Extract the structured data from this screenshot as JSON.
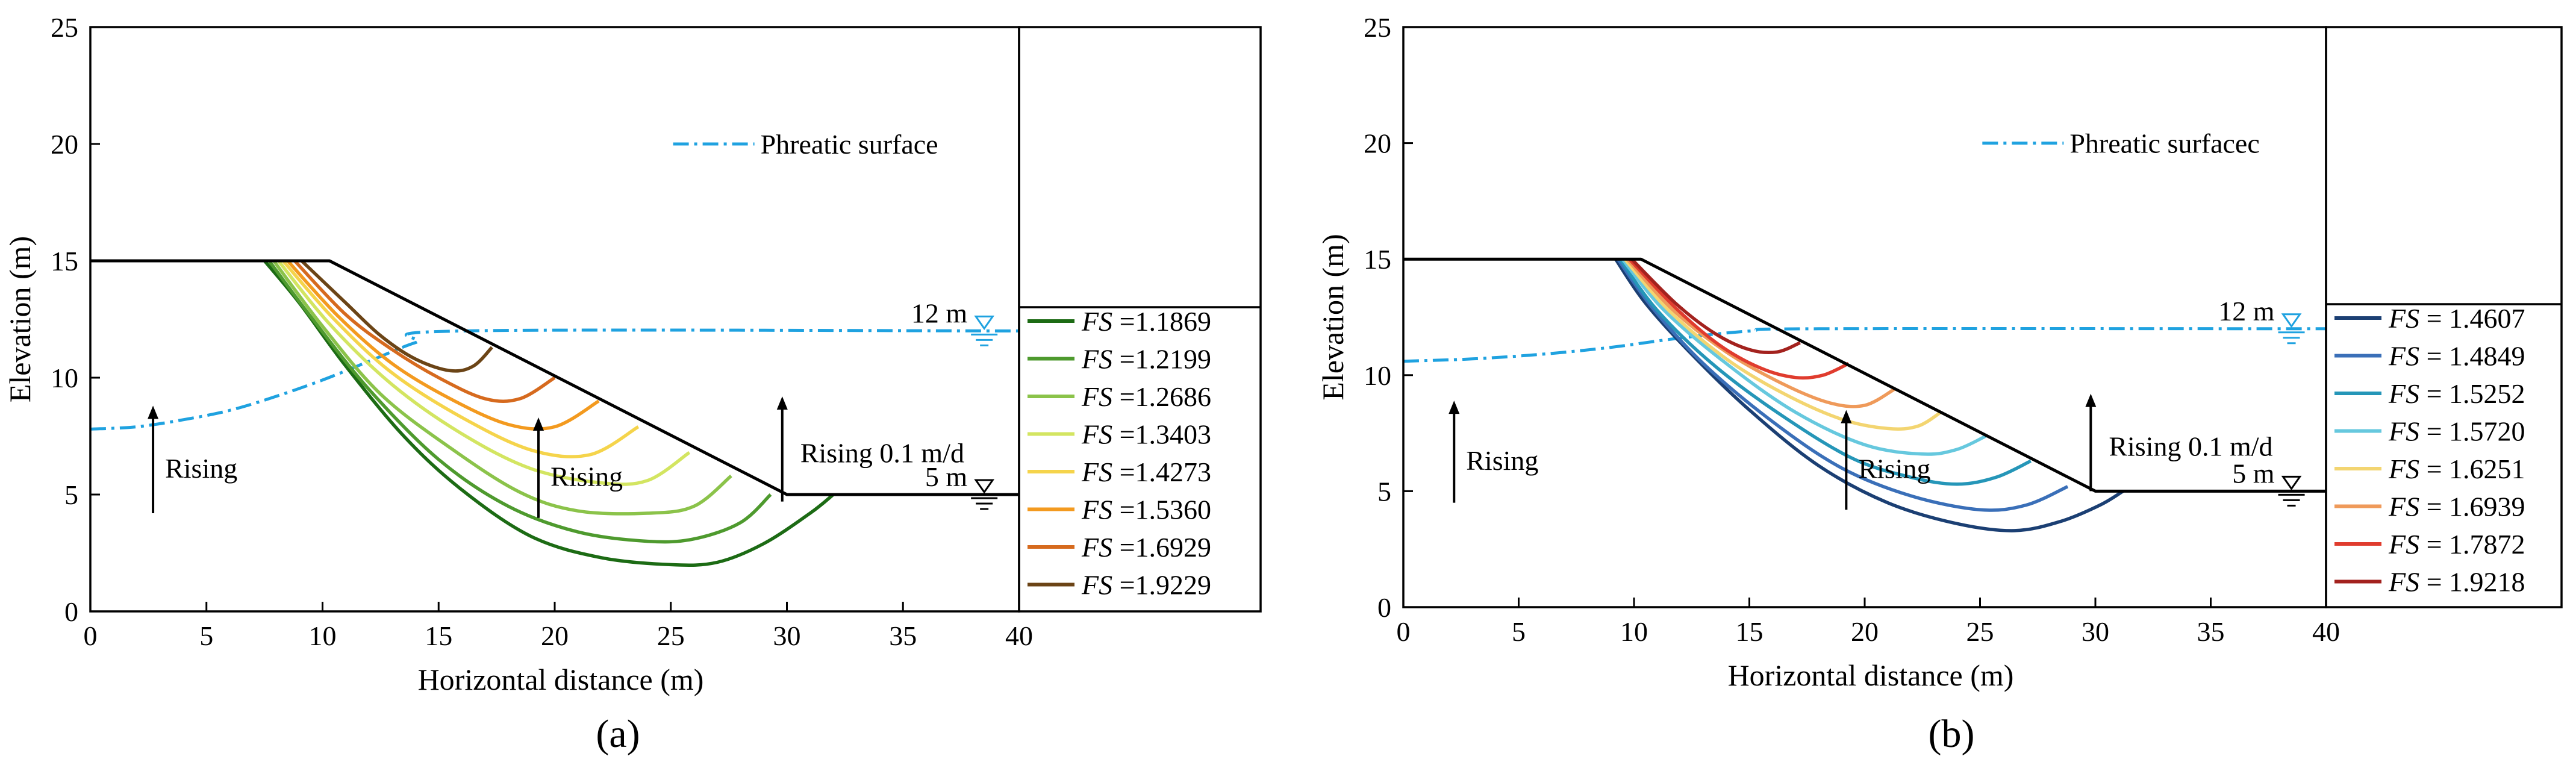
{
  "chart_data": [
    {
      "type": "line",
      "panel_label": "(a)",
      "xlabel": "Horizontal distance (m)",
      "ylabel": "Elevation (m)",
      "xlim": [
        0,
        40
      ],
      "ylim": [
        0,
        25
      ],
      "xticks": [
        "0",
        "5",
        "10",
        "15",
        "20",
        "25",
        "30",
        "35",
        "40"
      ],
      "yticks": [
        "0",
        "5",
        "10",
        "15",
        "20",
        "25"
      ],
      "slope_profile": [
        [
          0,
          15
        ],
        [
          9.3,
          15
        ],
        [
          10.3,
          15
        ],
        [
          30,
          5
        ],
        [
          40,
          5
        ]
      ],
      "phreatic_surface": {
        "name": "Phreatic surface",
        "color": "#1fa2e0",
        "points": [
          [
            0,
            7.8
          ],
          [
            2,
            7.9
          ],
          [
            4,
            8.2
          ],
          [
            6,
            8.6
          ],
          [
            8,
            9.2
          ],
          [
            10,
            9.9
          ],
          [
            12,
            10.7
          ],
          [
            14,
            11.5
          ],
          [
            16,
            12
          ],
          [
            40,
            12
          ]
        ]
      },
      "water_levels": [
        {
          "label": "12 m",
          "x": 38.5,
          "y": 12
        },
        {
          "label": "5 m",
          "x": 38.5,
          "y": 5
        }
      ],
      "annotations": [
        {
          "text": "Rising",
          "x": 2.7,
          "y": 4.2,
          "arrow_to": 8.8
        },
        {
          "text": "Rising",
          "x": 19.3,
          "y": 4.0,
          "arrow_to": 8.3
        },
        {
          "text": "Rising 0.1 m/d",
          "x": 29.8,
          "y": 4.7,
          "arrow_to": 9.2
        }
      ],
      "series": [
        {
          "name": "FS =1.1869",
          "color": "#1c6b14",
          "points": [
            [
              7.5,
              15
            ],
            [
              9,
              13.2
            ],
            [
              11,
              10.5
            ],
            [
              13.5,
              7.5
            ],
            [
              16,
              5.2
            ],
            [
              19,
              3.2
            ],
            [
              22,
              2.3
            ],
            [
              25,
              2.0
            ],
            [
              27,
              2.1
            ],
            [
              29,
              2.9
            ],
            [
              31,
              4.2
            ],
            [
              32,
              5.0
            ]
          ]
        },
        {
          "name": "FS =1.2199",
          "color": "#4e9a2e",
          "points": [
            [
              7.7,
              15
            ],
            [
              9.5,
              12.6
            ],
            [
              12,
              9.5
            ],
            [
              15,
              6.5
            ],
            [
              18,
              4.5
            ],
            [
              21,
              3.4
            ],
            [
              24,
              3.0
            ],
            [
              26,
              3.1
            ],
            [
              28,
              3.8
            ],
            [
              29.3,
              5.0
            ]
          ]
        },
        {
          "name": "FS =1.2686",
          "color": "#8bc34a",
          "points": [
            [
              7.9,
              15
            ],
            [
              10,
              12.2
            ],
            [
              12.5,
              9.3
            ],
            [
              15.5,
              7.0
            ],
            [
              18.5,
              5.1
            ],
            [
              21,
              4.3
            ],
            [
              24,
              4.2
            ],
            [
              26,
              4.5
            ],
            [
              27.6,
              5.8
            ]
          ]
        },
        {
          "name": "FS =1.3403",
          "color": "#d3e561",
          "points": [
            [
              8.1,
              15
            ],
            [
              10.3,
              12.3
            ],
            [
              13,
              9.7
            ],
            [
              16,
              7.6
            ],
            [
              19,
              6.1
            ],
            [
              22,
              5.5
            ],
            [
              24,
              5.6
            ],
            [
              25.8,
              6.8
            ]
          ]
        },
        {
          "name": "FS =1.4273",
          "color": "#f5d44b",
          "points": [
            [
              8.3,
              15
            ],
            [
              10.5,
              12.5
            ],
            [
              13,
              10.2
            ],
            [
              16,
              8.3
            ],
            [
              19,
              6.9
            ],
            [
              21.5,
              6.7
            ],
            [
              23.6,
              7.9
            ]
          ]
        },
        {
          "name": "FS =1.5360",
          "color": "#f39a1f",
          "points": [
            [
              8.5,
              15
            ],
            [
              10.7,
              12.6
            ],
            [
              13,
              10.6
            ],
            [
              15.5,
              9.1
            ],
            [
              18,
              8.0
            ],
            [
              20,
              7.9
            ],
            [
              21.9,
              9.0
            ]
          ]
        },
        {
          "name": "FS =1.6929",
          "color": "#d66a1e",
          "points": [
            [
              8.8,
              15
            ],
            [
              11,
              12.7
            ],
            [
              13,
              11.2
            ],
            [
              15,
              10.0
            ],
            [
              17,
              9.1
            ],
            [
              18.5,
              9.1
            ],
            [
              20,
              10.0
            ]
          ]
        },
        {
          "name": "FS =1.9229",
          "color": "#6b4416",
          "points": [
            [
              9.1,
              15
            ],
            [
              11,
              13.2
            ],
            [
              12.5,
              11.8
            ],
            [
              14,
              10.8
            ],
            [
              15.5,
              10.3
            ],
            [
              16.5,
              10.5
            ],
            [
              17.3,
              11.3
            ]
          ]
        }
      ]
    },
    {
      "type": "line",
      "panel_label": "(b)",
      "xlabel": "Horizontal distance (m)",
      "ylabel": "Elevation (m)",
      "xlim": [
        0,
        40
      ],
      "ylim": [
        0,
        25
      ],
      "xticks": [
        "0",
        "5",
        "10",
        "15",
        "20",
        "25",
        "30",
        "35",
        "40"
      ],
      "yticks": [
        "0",
        "5",
        "10",
        "15",
        "20",
        "25"
      ],
      "slope_profile": [
        [
          0,
          15
        ],
        [
          9.3,
          15
        ],
        [
          10.3,
          15
        ],
        [
          30,
          5
        ],
        [
          40,
          5
        ]
      ],
      "phreatic_surface": {
        "name": "Phreatic surfacec",
        "color": "#1fa2e0",
        "points": [
          [
            0,
            10.6
          ],
          [
            3,
            10.7
          ],
          [
            6,
            10.9
          ],
          [
            9,
            11.2
          ],
          [
            12,
            11.6
          ],
          [
            15,
            11.9
          ],
          [
            18,
            12
          ],
          [
            40,
            12
          ]
        ]
      },
      "water_levels": [
        {
          "label": "12 m",
          "x": 38.5,
          "y": 12
        },
        {
          "label": "5 m",
          "x": 38.5,
          "y": 5
        }
      ],
      "annotations": [
        {
          "text": "Rising",
          "x": 2.2,
          "y": 4.5,
          "arrow_to": 8.9
        },
        {
          "text": "Rising",
          "x": 19.2,
          "y": 4.2,
          "arrow_to": 8.5
        },
        {
          "text": "Rising 0.1 m/d",
          "x": 29.8,
          "y": 5.0,
          "arrow_to": 9.2
        }
      ],
      "series": [
        {
          "name": "FS = 1.4607",
          "color": "#1b3f73",
          "points": [
            [
              9.2,
              15
            ],
            [
              10.5,
              13.1
            ],
            [
              12.5,
              10.9
            ],
            [
              15,
              8.5
            ],
            [
              18,
              6.1
            ],
            [
              21,
              4.5
            ],
            [
              24,
              3.6
            ],
            [
              26.5,
              3.3
            ],
            [
              28.5,
              3.7
            ],
            [
              30.2,
              4.4
            ],
            [
              31.2,
              5.0
            ]
          ]
        },
        {
          "name": "FS = 1.4849",
          "color": "#3a6fb8",
          "points": [
            [
              9.3,
              15
            ],
            [
              10.8,
              12.9
            ],
            [
              13,
              10.5
            ],
            [
              16,
              8.0
            ],
            [
              19,
              6.0
            ],
            [
              22,
              4.8
            ],
            [
              25,
              4.2
            ],
            [
              27,
              4.4
            ],
            [
              28.8,
              5.2
            ]
          ]
        },
        {
          "name": "FS = 1.5252",
          "color": "#2596b8",
          "points": [
            [
              9.4,
              15
            ],
            [
              11,
              12.8
            ],
            [
              13.5,
              10.4
            ],
            [
              16.5,
              8.2
            ],
            [
              19.5,
              6.4
            ],
            [
              22,
              5.6
            ],
            [
              24,
              5.3
            ],
            [
              25.7,
              5.6
            ],
            [
              27.2,
              6.3
            ]
          ]
        },
        {
          "name": "FS = 1.5720",
          "color": "#66c8de",
          "points": [
            [
              9.5,
              15
            ],
            [
              11.3,
              12.8
            ],
            [
              14,
              10.5
            ],
            [
              17,
              8.4
            ],
            [
              20,
              7.0
            ],
            [
              22.5,
              6.6
            ],
            [
              24,
              6.8
            ],
            [
              25.3,
              7.4
            ]
          ]
        },
        {
          "name": "FS = 1.6251",
          "color": "#f3d571",
          "points": [
            [
              9.6,
              15
            ],
            [
              11.5,
              12.8
            ],
            [
              14,
              10.7
            ],
            [
              16.5,
              9.2
            ],
            [
              19,
              8.1
            ],
            [
              21,
              7.7
            ],
            [
              22.3,
              7.8
            ],
            [
              23.3,
              8.4
            ]
          ]
        },
        {
          "name": "FS = 1.6939",
          "color": "#ef9a5a",
          "points": [
            [
              9.7,
              15
            ],
            [
              11.7,
              12.8
            ],
            [
              14,
              11.0
            ],
            [
              16.5,
              9.6
            ],
            [
              18.5,
              8.8
            ],
            [
              20,
              8.7
            ],
            [
              21.3,
              9.4
            ]
          ]
        },
        {
          "name": "FS = 1.7872",
          "color": "#e03c2e",
          "points": [
            [
              9.8,
              15
            ],
            [
              11.8,
              12.9
            ],
            [
              13.7,
              11.3
            ],
            [
              15.5,
              10.3
            ],
            [
              17,
              9.9
            ],
            [
              18.2,
              10.0
            ],
            [
              19.3,
              10.5
            ]
          ]
        },
        {
          "name": "FS = 1.9218",
          "color": "#a3221e",
          "points": [
            [
              9.9,
              15
            ],
            [
              11.8,
              13.1
            ],
            [
              13.5,
              11.8
            ],
            [
              15,
              11.1
            ],
            [
              16.2,
              11.0
            ],
            [
              17.2,
              11.4
            ]
          ]
        }
      ]
    }
  ]
}
